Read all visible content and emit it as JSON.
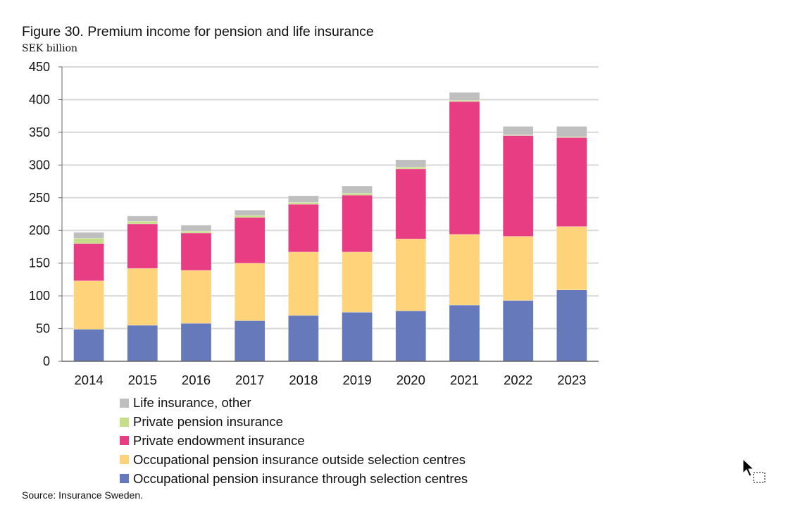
{
  "chart_data": {
    "type": "bar",
    "stacked": true,
    "title": "Figure 30. Premium income for pension and life insurance",
    "ylabel": "SEK billion",
    "xlabel": "",
    "ylim": [
      0,
      450
    ],
    "yticks": [
      0,
      50,
      100,
      150,
      200,
      250,
      300,
      350,
      400,
      450
    ],
    "grid": true,
    "legend_placement": "bottom",
    "categories": [
      "2014",
      "2015",
      "2016",
      "2017",
      "2018",
      "2019",
      "2020",
      "2021",
      "2022",
      "2023"
    ],
    "series": [
      {
        "name": "Occupational pension insurance through selection centres",
        "color": "#6679bb",
        "values": [
          49,
          55,
          58,
          62,
          70,
          75,
          77,
          86,
          93,
          109
        ]
      },
      {
        "name": "Occupational pension insurance outside selection centres",
        "color": "#fed37a",
        "values": [
          74,
          87,
          81,
          88,
          97,
          92,
          110,
          108,
          98,
          97
        ]
      },
      {
        "name": "Private endowment insurance",
        "color": "#e93d83",
        "values": [
          57,
          68,
          57,
          70,
          73,
          87,
          107,
          203,
          154,
          136
        ]
      },
      {
        "name": "Private pension insurance",
        "color": "#c6dd8a",
        "values": [
          8,
          4,
          3,
          3,
          3,
          3,
          3,
          2,
          1,
          1
        ]
      },
      {
        "name": "Life insurance, other",
        "color": "#bfbfbf",
        "values": [
          9,
          8,
          9,
          8,
          10,
          11,
          11,
          12,
          13,
          16
        ]
      }
    ],
    "source": "Source: Insurance Sweden."
  }
}
